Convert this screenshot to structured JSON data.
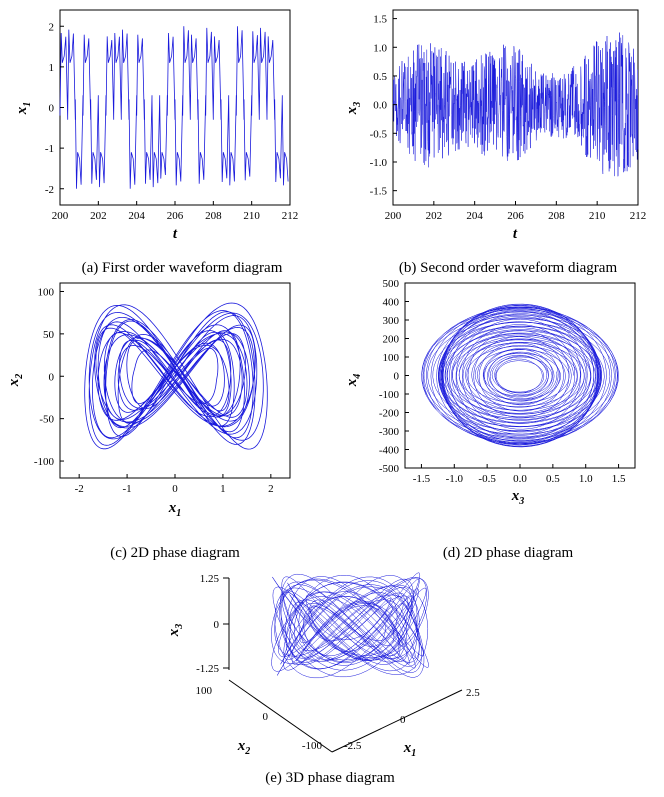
{
  "colors": {
    "trace": "#1a1adc",
    "axes": "#000000",
    "background": "#ffffff"
  },
  "chart_data": [
    {
      "id": "a",
      "type": "line",
      "caption": "(a) First order waveform diagram",
      "xlabel": "t",
      "ylabel": "x1",
      "xlim": [
        200,
        212
      ],
      "ylim": [
        -2.4,
        2.4
      ],
      "xticks": [
        200,
        202,
        204,
        206,
        208,
        210,
        212
      ],
      "yticks": [
        -2,
        -1,
        0,
        1,
        2
      ],
      "waveform": {
        "kind": "chaotic-switching",
        "amplitude_range": [
          -2.0,
          2.0
        ],
        "period_approx": 0.4
      }
    },
    {
      "id": "b",
      "type": "line",
      "caption": "(b) Second order waveform diagram",
      "xlabel": "t",
      "ylabel": "x3",
      "xlim": [
        200,
        212
      ],
      "ylim": [
        -1.75,
        1.65
      ],
      "xticks": [
        200,
        202,
        204,
        206,
        208,
        210,
        212
      ],
      "yticks": [
        -1.5,
        -1.0,
        -0.5,
        0.0,
        0.5,
        1.0,
        1.5
      ],
      "ytick_labels": [
        "-1.5",
        "-1.0",
        "-0.5",
        "0.0",
        "0.5",
        "1.0",
        "1.5"
      ],
      "waveform": {
        "kind": "high-frequency-chaotic",
        "amplitude_range": [
          -1.45,
          1.5
        ]
      }
    },
    {
      "id": "c",
      "type": "line",
      "caption": "(c) 2D phase diagram",
      "xlabel": "x1",
      "ylabel": "x2",
      "xlim": [
        -2.4,
        2.4
      ],
      "ylim": [
        -120,
        110
      ],
      "xticks": [
        -2,
        -1,
        0,
        1,
        2
      ],
      "yticks": [
        -100,
        -50,
        0,
        50,
        100
      ],
      "attractor": {
        "kind": "double-scroll",
        "x_range": [
          -2.0,
          2.0
        ],
        "y_range": [
          -95,
          90
        ]
      }
    },
    {
      "id": "d",
      "type": "line",
      "caption": "(d) 2D phase diagram",
      "xlabel": "x3",
      "ylabel": "x4",
      "xlim": [
        -1.75,
        1.75
      ],
      "ylim": [
        -500,
        500
      ],
      "xticks": [
        -1.5,
        -1.0,
        -0.5,
        0.0,
        0.5,
        1.0,
        1.5
      ],
      "xtick_labels": [
        "-1.5",
        "-1.0",
        "-0.5",
        "0.0",
        "0.5",
        "1.0",
        "1.5"
      ],
      "yticks": [
        -500,
        -400,
        -300,
        -200,
        -100,
        0,
        100,
        200,
        300,
        400,
        500
      ],
      "attractor": {
        "kind": "dense-ring",
        "x_range": [
          -1.5,
          1.5
        ],
        "y_range": [
          -410,
          410
        ]
      }
    },
    {
      "id": "e",
      "type": "line",
      "caption": "(e) 3D phase diagram",
      "axes3d": {
        "x1": {
          "label": "x1",
          "ticks": [
            "-2.5",
            "0",
            "2.5"
          ]
        },
        "x2": {
          "label": "x2",
          "ticks": [
            "-100",
            "0",
            "100"
          ]
        },
        "x3": {
          "label": "x3",
          "ticks": [
            "-1.25",
            "0",
            "1.25"
          ]
        }
      }
    }
  ]
}
